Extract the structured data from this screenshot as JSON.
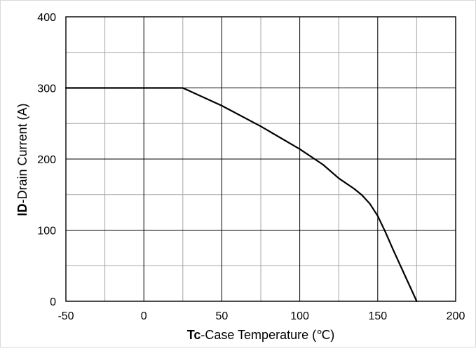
{
  "chart_data": {
    "type": "line",
    "title": "",
    "xlabel": {
      "bold": "Tc",
      "rest": "-Case Temperature  (℃)"
    },
    "ylabel": {
      "bold": "ID",
      "rest": "-Drain Current  (A)"
    },
    "xlim": [
      -50,
      200
    ],
    "ylim": [
      0,
      400
    ],
    "x_ticks": [
      -50,
      0,
      50,
      100,
      150,
      200
    ],
    "y_ticks": [
      0,
      100,
      200,
      300,
      400
    ],
    "x_tick_labels": [
      "-50",
      "0",
      "50",
      "100",
      "150",
      "200"
    ],
    "y_tick_labels": [
      "0",
      "100",
      "200",
      "300",
      "400"
    ],
    "x_minor_step": 25,
    "y_minor_step": 50,
    "grid": true,
    "legend": "none",
    "series": [
      {
        "color": "#000000",
        "x": [
          -50,
          25,
          50,
          75,
          100,
          115,
          125,
          135,
          140,
          145,
          150,
          155,
          160,
          165,
          170,
          175
        ],
        "y": [
          300,
          300,
          275,
          246,
          214,
          192,
          173,
          158,
          149,
          137,
          120,
          97,
          72,
          48,
          24,
          0
        ]
      }
    ]
  },
  "colors": {
    "axis": "#000000",
    "major_grid": "#000000",
    "minor_grid": "#a6a6a6",
    "border": "#d9d9d9"
  }
}
